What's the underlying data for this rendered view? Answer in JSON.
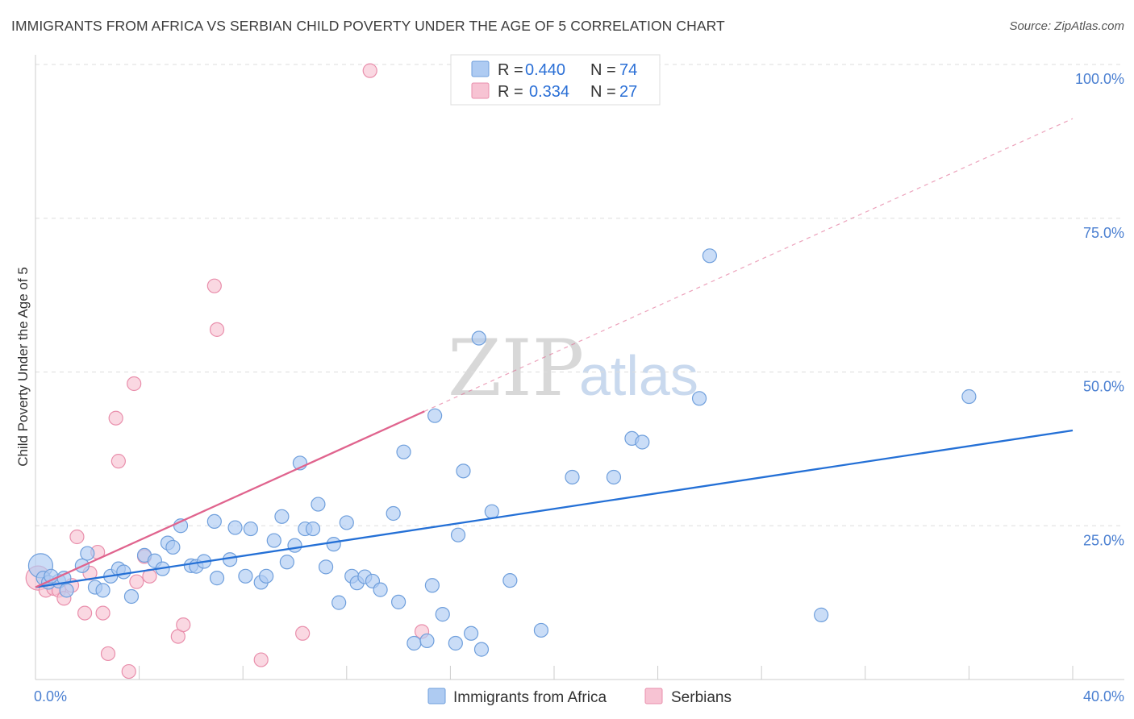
{
  "header": {
    "title": "IMMIGRANTS FROM AFRICA VS SERBIAN CHILD POVERTY UNDER THE AGE OF 5 CORRELATION CHART",
    "source": "Source: ZipAtlas.com"
  },
  "watermark": {
    "zip": "ZIP",
    "atlas": "atlas"
  },
  "colors": {
    "blue_fill": "#aecbf2",
    "blue_stroke": "#6f9fdc",
    "blue_line": "#2470d6",
    "pink_fill": "#f7c3d3",
    "pink_stroke": "#e98fac",
    "pink_line": "#e0648e",
    "tick_label": "#4a7fd1",
    "grid": "#dddddd"
  },
  "legend": {
    "rows": [
      {
        "r_label": "R =",
        "r_value": "0.440",
        "n_label": "N =",
        "n_value": "74",
        "series": "blue"
      },
      {
        "r_label": "R =",
        "r_value": "0.334",
        "n_label": "N =",
        "n_value": "27",
        "series": "pink"
      }
    ]
  },
  "chart_data": {
    "type": "scatter",
    "title": "IMMIGRANTS FROM AFRICA VS SERBIAN CHILD POVERTY UNDER THE AGE OF 5 CORRELATION CHART",
    "xlabel": "",
    "ylabel": "Child Poverty Under the Age of 5",
    "xlim": [
      0,
      40
    ],
    "ylim": [
      0,
      100
    ],
    "x_tick_labels": {
      "left": "0.0%",
      "right": "40.0%"
    },
    "y_ticks": [
      {
        "value": 25,
        "label": "25.0%"
      },
      {
        "value": 50,
        "label": "50.0%"
      },
      {
        "value": 75,
        "label": "75.0%"
      },
      {
        "value": 100,
        "label": "100.0%"
      }
    ],
    "grid": true,
    "series": [
      {
        "name": "Immigrants from Africa",
        "color": "blue",
        "R": 0.44,
        "N": 74,
        "trend": {
          "x0": 0,
          "y0": 15.0,
          "x1": 40,
          "y1": 40.5,
          "dashed_extension": false
        },
        "points": [
          [
            0.2,
            18.5,
            "big"
          ],
          [
            0.3,
            16.5
          ],
          [
            0.5,
            15.8
          ],
          [
            0.9,
            16.0
          ],
          [
            1.1,
            16.5
          ],
          [
            1.2,
            14.5
          ],
          [
            1.8,
            18.5
          ],
          [
            2.0,
            20.5
          ],
          [
            2.3,
            15.0
          ],
          [
            2.6,
            14.5
          ],
          [
            2.9,
            16.8
          ],
          [
            3.2,
            18.0
          ],
          [
            3.4,
            17.5
          ],
          [
            3.7,
            13.5
          ],
          [
            4.2,
            20.2
          ],
          [
            4.6,
            19.3
          ],
          [
            4.9,
            18.0
          ],
          [
            5.1,
            22.2
          ],
          [
            5.3,
            21.5
          ],
          [
            5.6,
            25.0
          ],
          [
            6.0,
            18.5
          ],
          [
            6.2,
            18.4
          ],
          [
            6.5,
            19.2
          ],
          [
            6.9,
            25.7
          ],
          [
            7.0,
            16.5
          ],
          [
            7.5,
            19.5
          ],
          [
            7.7,
            24.7
          ],
          [
            8.1,
            16.8
          ],
          [
            8.3,
            24.5
          ],
          [
            8.7,
            15.8
          ],
          [
            8.9,
            16.8
          ],
          [
            9.2,
            22.6
          ],
          [
            9.5,
            26.5
          ],
          [
            9.7,
            19.1
          ],
          [
            10.0,
            21.8
          ],
          [
            10.2,
            35.2
          ],
          [
            10.4,
            24.5
          ],
          [
            10.7,
            24.5
          ],
          [
            10.9,
            28.5
          ],
          [
            11.2,
            18.3
          ],
          [
            11.5,
            22.0
          ],
          [
            11.7,
            12.5
          ],
          [
            12.0,
            25.5
          ],
          [
            12.2,
            16.8
          ],
          [
            12.4,
            15.7
          ],
          [
            12.7,
            16.7
          ],
          [
            13.0,
            16.0
          ],
          [
            13.3,
            14.6
          ],
          [
            13.8,
            27.0
          ],
          [
            14.0,
            12.6
          ],
          [
            14.2,
            37.0
          ],
          [
            14.6,
            5.9
          ],
          [
            15.1,
            6.3
          ],
          [
            15.3,
            15.3
          ],
          [
            15.4,
            42.9
          ],
          [
            15.7,
            10.6
          ],
          [
            16.2,
            5.9
          ],
          [
            16.3,
            23.5
          ],
          [
            16.5,
            33.9
          ],
          [
            16.8,
            7.5
          ],
          [
            17.1,
            55.5
          ],
          [
            17.2,
            4.9
          ],
          [
            17.6,
            27.3
          ],
          [
            18.3,
            16.1
          ],
          [
            19.5,
            8.0
          ],
          [
            20.7,
            32.9
          ],
          [
            22.3,
            32.9
          ],
          [
            23.0,
            39.2
          ],
          [
            23.4,
            38.6
          ],
          [
            25.6,
            45.7
          ],
          [
            26.0,
            68.9
          ],
          [
            30.3,
            10.5
          ],
          [
            36.0,
            46.0
          ],
          [
            0.6,
            16.8
          ]
        ]
      },
      {
        "name": "Serbians",
        "color": "pink",
        "R": 0.334,
        "N": 27,
        "trend": {
          "x0": 0,
          "y0": 15.0,
          "x1": 15.0,
          "y1": 43.6,
          "dashed_to_x": 40,
          "dashed_to_y": 91.2
        },
        "points": [
          [
            0.1,
            16.5,
            "big"
          ],
          [
            0.4,
            14.5
          ],
          [
            0.7,
            14.8
          ],
          [
            0.9,
            14.5
          ],
          [
            1.1,
            13.2
          ],
          [
            1.4,
            15.3
          ],
          [
            1.6,
            23.2
          ],
          [
            1.9,
            10.8
          ],
          [
            2.1,
            17.3
          ],
          [
            2.4,
            20.7
          ],
          [
            2.6,
            10.8
          ],
          [
            2.8,
            4.2
          ],
          [
            3.1,
            42.5
          ],
          [
            3.2,
            35.5
          ],
          [
            3.6,
            1.3
          ],
          [
            3.8,
            48.1
          ],
          [
            3.9,
            15.9
          ],
          [
            4.2,
            20.0
          ],
          [
            4.4,
            16.8
          ],
          [
            5.5,
            7.0
          ],
          [
            5.7,
            8.9
          ],
          [
            6.9,
            64.0
          ],
          [
            7.0,
            56.9
          ],
          [
            8.7,
            3.2
          ],
          [
            10.3,
            7.5
          ],
          [
            12.9,
            99.0
          ],
          [
            14.9,
            7.8
          ]
        ]
      }
    ]
  },
  "bottom_legend": {
    "items": [
      {
        "label": "Immigrants from Africa",
        "series": "blue"
      },
      {
        "label": "Serbians",
        "series": "pink"
      }
    ]
  }
}
